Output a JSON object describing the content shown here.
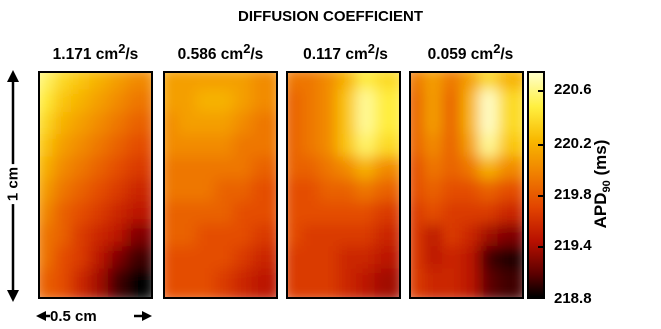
{
  "figure": {
    "title": "DIFFUSION COEFFICIENT",
    "panels": [
      {
        "value": "1.171",
        "unit": "cm",
        "unit_sup": "2",
        "unit_suffix": "/s"
      },
      {
        "value": "0.586",
        "unit": "cm",
        "unit_sup": "2",
        "unit_suffix": "/s"
      },
      {
        "value": "0.117",
        "unit": "cm",
        "unit_sup": "2",
        "unit_suffix": "/s"
      },
      {
        "value": "0.059",
        "unit": "cm",
        "unit_sup": "2",
        "unit_suffix": "/s"
      }
    ],
    "vertical_scale": "1 cm",
    "horizontal_scale": "0.5 cm"
  },
  "colorbar": {
    "label_main": "APD",
    "label_sub": "90",
    "label_unit": "(ms)",
    "ticks": [
      "220.6",
      "220.2",
      "219.8",
      "219.4",
      "218.8"
    ],
    "colors": [
      "#000000",
      "#5a0000",
      "#b81000",
      "#e24400",
      "#f08000",
      "#f8b800",
      "#fff040",
      "#ffffc8"
    ]
  },
  "chart_data": {
    "type": "heatmap",
    "title": "DIFFUSION COEFFICIENT",
    "colorbar_label": "APD90 (ms)",
    "colorbar_range": [
      218.8,
      220.8
    ],
    "colorbar_ticks": [
      220.6,
      220.2,
      219.8,
      219.4,
      218.8
    ],
    "x_extent": "0.5 cm",
    "y_extent": "1 cm",
    "panels": [
      {
        "label": "1.171 cm²/s",
        "grid": [
          [
            220.6,
            220.4,
            220.3,
            220.2,
            220.1,
            220.0
          ],
          [
            220.5,
            220.3,
            220.2,
            220.1,
            220.0,
            219.9
          ],
          [
            220.4,
            220.2,
            220.1,
            220.0,
            219.9,
            219.8
          ],
          [
            220.3,
            220.1,
            220.0,
            219.9,
            219.8,
            219.7
          ],
          [
            220.2,
            220.0,
            219.9,
            219.8,
            219.7,
            219.6
          ],
          [
            220.1,
            219.9,
            219.8,
            219.7,
            219.6,
            219.5
          ],
          [
            220.0,
            219.8,
            219.7,
            219.6,
            219.5,
            219.4
          ],
          [
            219.9,
            219.8,
            219.6,
            219.5,
            219.4,
            219.2
          ],
          [
            219.9,
            219.7,
            219.6,
            219.4,
            219.2,
            219.0
          ],
          [
            219.8,
            219.7,
            219.5,
            219.3,
            219.0,
            218.8
          ]
        ]
      },
      {
        "label": "0.586 cm²/s",
        "grid": [
          [
            220.1,
            220.1,
            220.1,
            220.1,
            220.1,
            220.0
          ],
          [
            220.1,
            220.1,
            220.2,
            220.2,
            220.1,
            220.0
          ],
          [
            220.0,
            220.1,
            220.1,
            220.1,
            220.0,
            219.9
          ],
          [
            220.0,
            220.0,
            220.0,
            220.0,
            219.9,
            219.9
          ],
          [
            219.9,
            219.9,
            219.9,
            219.9,
            219.9,
            219.8
          ],
          [
            219.9,
            219.9,
            219.9,
            219.8,
            219.8,
            219.7
          ],
          [
            219.8,
            219.8,
            219.8,
            219.8,
            219.7,
            219.7
          ],
          [
            219.8,
            219.8,
            219.7,
            219.7,
            219.7,
            219.6
          ],
          [
            219.7,
            219.7,
            219.7,
            219.7,
            219.6,
            219.5
          ],
          [
            219.7,
            219.7,
            219.7,
            219.6,
            219.5,
            219.4
          ]
        ]
      },
      {
        "label": "0.117 cm²/s",
        "grid": [
          [
            219.9,
            219.9,
            220.0,
            220.2,
            220.5,
            220.4
          ],
          [
            219.8,
            219.9,
            220.0,
            220.3,
            220.7,
            220.5
          ],
          [
            219.8,
            219.9,
            220.0,
            220.3,
            220.7,
            220.5
          ],
          [
            219.8,
            219.9,
            220.0,
            220.3,
            220.6,
            220.4
          ],
          [
            219.8,
            219.8,
            219.9,
            220.0,
            220.2,
            220.0
          ],
          [
            219.7,
            219.7,
            219.8,
            219.8,
            219.9,
            219.8
          ],
          [
            219.7,
            219.7,
            219.7,
            219.7,
            219.7,
            219.6
          ],
          [
            219.7,
            219.6,
            219.6,
            219.6,
            219.6,
            219.5
          ],
          [
            219.6,
            219.6,
            219.6,
            219.5,
            219.5,
            219.4
          ],
          [
            219.6,
            219.6,
            219.6,
            219.5,
            219.4,
            219.3
          ]
        ]
      },
      {
        "label": "0.059 cm²/s",
        "grid": [
          [
            219.9,
            220.1,
            219.9,
            220.1,
            220.4,
            220.2
          ],
          [
            219.8,
            220.1,
            219.8,
            220.2,
            220.8,
            220.4
          ],
          [
            219.8,
            220.1,
            219.8,
            220.2,
            220.8,
            220.4
          ],
          [
            219.8,
            220.0,
            219.8,
            220.1,
            220.7,
            220.3
          ],
          [
            219.7,
            219.9,
            219.8,
            219.9,
            220.2,
            220.0
          ],
          [
            219.7,
            219.8,
            219.7,
            219.7,
            219.8,
            219.7
          ],
          [
            219.6,
            219.7,
            219.6,
            219.6,
            219.6,
            219.5
          ],
          [
            219.6,
            219.4,
            219.6,
            219.5,
            219.3,
            219.2
          ],
          [
            219.6,
            219.4,
            219.5,
            219.4,
            219.0,
            218.9
          ],
          [
            219.6,
            219.5,
            219.5,
            219.4,
            219.1,
            219.0
          ]
        ]
      }
    ]
  }
}
